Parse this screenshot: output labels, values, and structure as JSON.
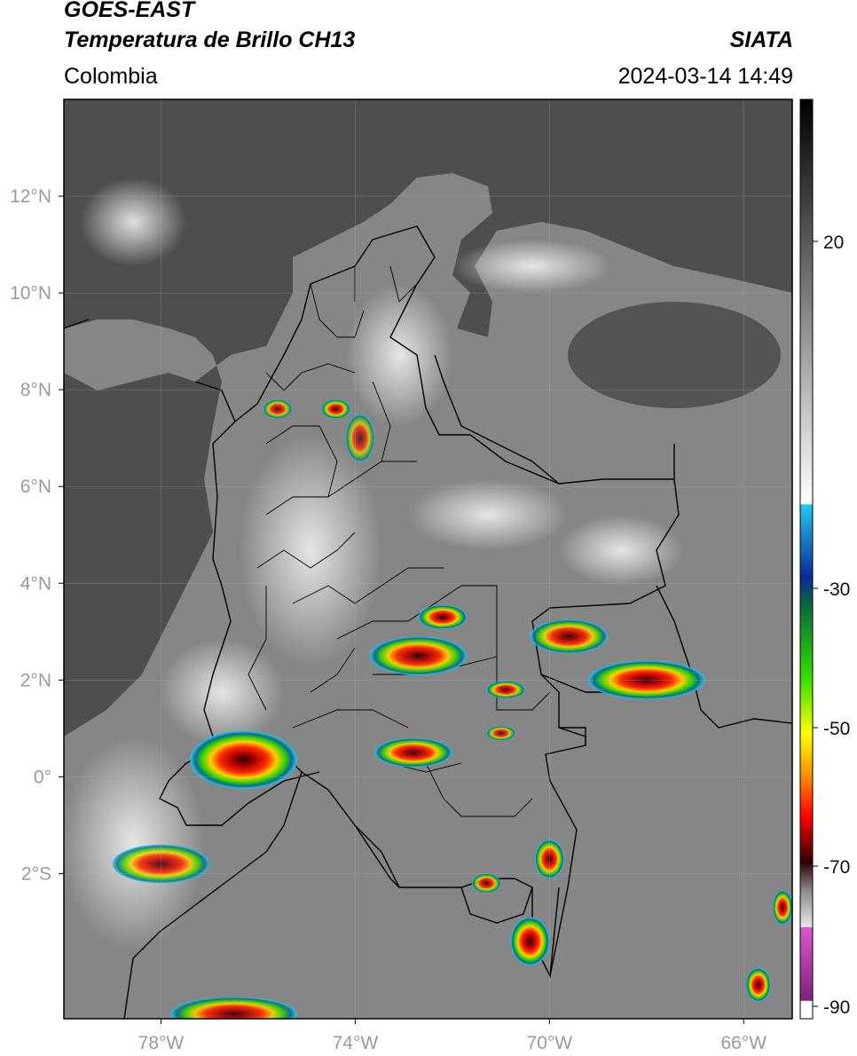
{
  "header": {
    "satellite": "GOES-EAST",
    "product": "Temperatura de Brillo CH13",
    "region": "Colombia",
    "organization": "SIATA",
    "datetime": "2024-03-14 14:49"
  },
  "map": {
    "lon_range": [
      -80,
      -65
    ],
    "lat_range": [
      -5,
      14
    ],
    "lon_ticks": [
      {
        "value": -78,
        "label": "78°W"
      },
      {
        "value": -74,
        "label": "74°W"
      },
      {
        "value": -70,
        "label": "70°W"
      },
      {
        "value": -66,
        "label": "66°W"
      }
    ],
    "lat_ticks": [
      {
        "value": 12,
        "label": "12°N"
      },
      {
        "value": 10,
        "label": "10°N"
      },
      {
        "value": 8,
        "label": "8°N"
      },
      {
        "value": 6,
        "label": "6°N"
      },
      {
        "value": 4,
        "label": "4°N"
      },
      {
        "value": 2,
        "label": "2°N"
      },
      {
        "value": 0,
        "label": "0°"
      },
      {
        "value": -2,
        "label": "2°S"
      }
    ],
    "storm_cells": [
      {
        "lon": -76.3,
        "lat": 0.35,
        "rx": 1.1,
        "ry": 0.6,
        "intensity": 1.0
      },
      {
        "lon": -78.0,
        "lat": -1.8,
        "rx": 1.0,
        "ry": 0.4,
        "intensity": 0.7
      },
      {
        "lon": -72.7,
        "lat": 2.5,
        "rx": 1.0,
        "ry": 0.4,
        "intensity": 0.85
      },
      {
        "lon": -72.2,
        "lat": 3.3,
        "rx": 0.5,
        "ry": 0.25,
        "intensity": 0.9
      },
      {
        "lon": -72.8,
        "lat": 0.5,
        "rx": 0.8,
        "ry": 0.3,
        "intensity": 0.85
      },
      {
        "lon": -68.0,
        "lat": 2.0,
        "rx": 1.2,
        "ry": 0.4,
        "intensity": 0.95
      },
      {
        "lon": -69.6,
        "lat": 2.9,
        "rx": 0.8,
        "ry": 0.35,
        "intensity": 0.8
      },
      {
        "lon": -70.9,
        "lat": 1.8,
        "rx": 0.4,
        "ry": 0.18,
        "intensity": 0.8
      },
      {
        "lon": -70.0,
        "lat": -1.7,
        "rx": 0.3,
        "ry": 0.4,
        "intensity": 0.85
      },
      {
        "lon": -70.4,
        "lat": -3.4,
        "rx": 0.4,
        "ry": 0.5,
        "intensity": 1.0
      },
      {
        "lon": -71.3,
        "lat": -2.2,
        "rx": 0.3,
        "ry": 0.2,
        "intensity": 0.7
      },
      {
        "lon": -76.5,
        "lat": -4.9,
        "rx": 1.3,
        "ry": 0.35,
        "intensity": 0.8
      },
      {
        "lon": -74.4,
        "lat": 7.6,
        "rx": 0.3,
        "ry": 0.2,
        "intensity": 0.8
      },
      {
        "lon": -75.6,
        "lat": 7.6,
        "rx": 0.3,
        "ry": 0.2,
        "intensity": 0.6
      },
      {
        "lon": -73.9,
        "lat": 7.0,
        "rx": 0.3,
        "ry": 0.5,
        "intensity": 0.4
      },
      {
        "lon": -65.7,
        "lat": -4.3,
        "rx": 0.25,
        "ry": 0.35,
        "intensity": 0.95
      },
      {
        "lon": -65.2,
        "lat": -2.7,
        "rx": 0.2,
        "ry": 0.35,
        "intensity": 0.9
      },
      {
        "lon": -71.0,
        "lat": 0.9,
        "rx": 0.3,
        "ry": 0.15,
        "intensity": 0.6
      }
    ]
  },
  "colorbar": {
    "ticks": [
      {
        "value": 20,
        "label": "20"
      },
      {
        "value": -30,
        "label": "-30"
      },
      {
        "value": -50,
        "label": "-50"
      },
      {
        "value": -70,
        "label": "-70"
      },
      {
        "value": -90,
        "label": "-90"
      }
    ]
  },
  "colors": {
    "ocean": "#4e4e4e",
    "land": "#868686",
    "clouds": "#d6d6d6",
    "border": "#000000"
  }
}
